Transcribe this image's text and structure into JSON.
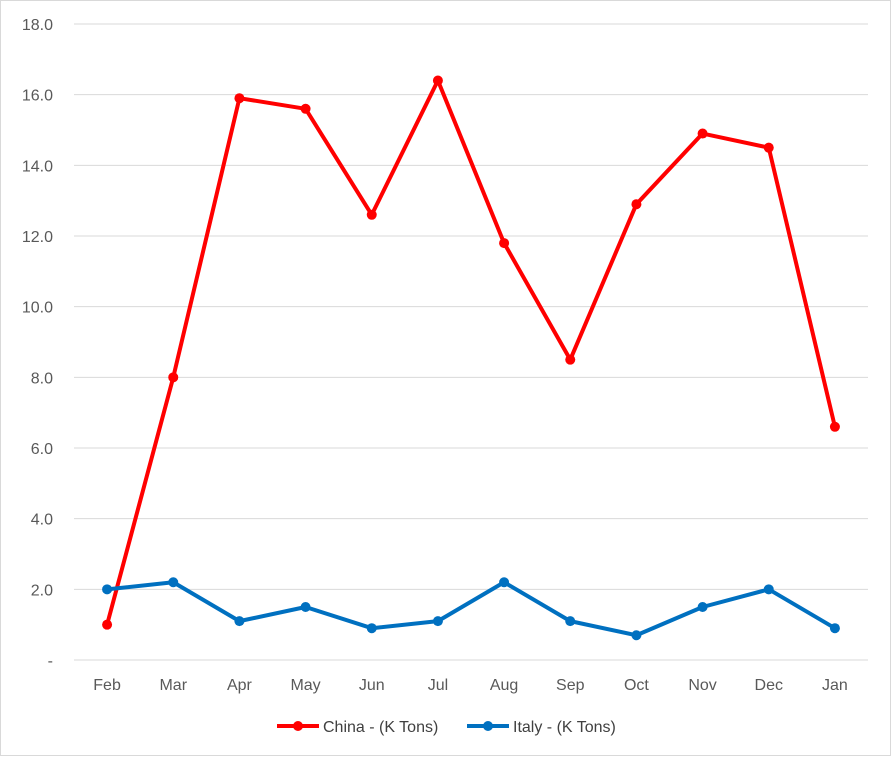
{
  "chart_data": {
    "type": "line",
    "categories": [
      "Feb",
      "Mar",
      "Apr",
      "May",
      "Jun",
      "Jul",
      "Aug",
      "Sep",
      "Oct",
      "Nov",
      "Dec",
      "Jan"
    ],
    "series": [
      {
        "name": "China - (K Tons)",
        "color": "#ff0000",
        "values": [
          1.0,
          8.0,
          15.9,
          15.6,
          12.6,
          16.4,
          11.8,
          8.5,
          12.9,
          14.9,
          14.5,
          6.6
        ]
      },
      {
        "name": "Italy - (K Tons)",
        "color": "#0070c0",
        "values": [
          2.0,
          2.2,
          1.1,
          1.5,
          0.9,
          1.1,
          2.2,
          1.1,
          0.7,
          1.5,
          2.0,
          0.9
        ]
      }
    ],
    "y_ticks": [
      "-",
      "2.0",
      "4.0",
      "6.0",
      "8.0",
      "10.0",
      "12.0",
      "14.0",
      "16.0",
      "18.0"
    ],
    "ylim": [
      0,
      18
    ],
    "grid": true,
    "legend_position": "bottom"
  }
}
